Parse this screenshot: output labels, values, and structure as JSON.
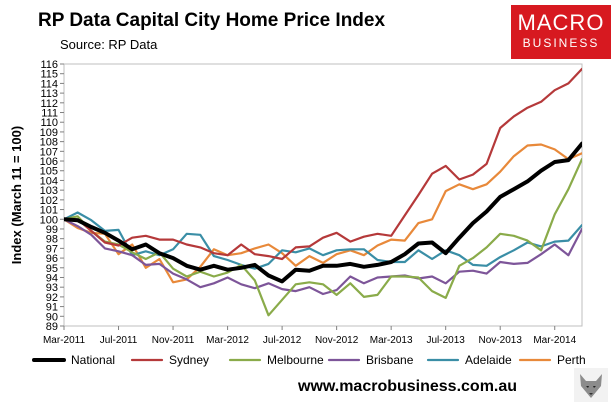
{
  "header": {
    "title": "RP Data Capital City Home Price Index",
    "subtitle": "Source: RP Data"
  },
  "logo": {
    "line1": "MACRO",
    "line2": "BUSINESS"
  },
  "footer": {
    "url": "www.macrobusiness.com.au"
  },
  "chart_data": {
    "type": "line",
    "title": "RP Data Capital City Home Price Index",
    "ylabel": "Index (March 11 = 100)",
    "xlabel": "",
    "ylim": [
      89,
      116
    ],
    "yticks": [
      89,
      90,
      91,
      92,
      93,
      94,
      95,
      96,
      97,
      98,
      99,
      100,
      101,
      102,
      103,
      104,
      105,
      106,
      107,
      108,
      109,
      110,
      111,
      112,
      113,
      114,
      115,
      116
    ],
    "xlim": [
      0,
      38
    ],
    "xticks": [
      {
        "x": 0,
        "label": "Mar-2011"
      },
      {
        "x": 4,
        "label": "Jul-2011"
      },
      {
        "x": 8,
        "label": "Nov-2011"
      },
      {
        "x": 12,
        "label": "Mar-2012"
      },
      {
        "x": 16,
        "label": "Jul-2012"
      },
      {
        "x": 20,
        "label": "Nov-2012"
      },
      {
        "x": 24,
        "label": "Mar-2013"
      },
      {
        "x": 28,
        "label": "Jul-2013"
      },
      {
        "x": 32,
        "label": "Nov-2013"
      },
      {
        "x": 36,
        "label": "Mar-2014"
      }
    ],
    "legend_position": "bottom",
    "series": [
      {
        "name": "National",
        "color": "#000000",
        "width": 4,
        "x": [
          0,
          1,
          2,
          3,
          4,
          5,
          6,
          7,
          8,
          9,
          10,
          11,
          12,
          13,
          14,
          15,
          16,
          17,
          18,
          19,
          20,
          21,
          22,
          23,
          24,
          25,
          26,
          27,
          28,
          29,
          30,
          31,
          32,
          33,
          34,
          35,
          36,
          37,
          38
        ],
        "y": [
          100,
          99.9,
          99.2,
          98.6,
          97.8,
          96.9,
          97.4,
          96.5,
          96,
          95.2,
          94.8,
          95.2,
          94.8,
          95,
          95.3,
          94.2,
          93.6,
          94.8,
          94.7,
          95.2,
          95.2,
          95.4,
          95.1,
          95.3,
          95.6,
          96.4,
          97.5,
          97.6,
          96.5,
          98.1,
          99.6,
          100.8,
          102.3,
          103.1,
          103.9,
          105,
          105.9,
          106.1,
          107.8
        ]
      },
      {
        "name": "Sydney",
        "color": "#b5393a",
        "width": 2.2,
        "x": [
          0,
          1,
          2,
          3,
          4,
          5,
          6,
          7,
          8,
          9,
          10,
          11,
          12,
          13,
          14,
          15,
          16,
          17,
          18,
          19,
          20,
          21,
          22,
          23,
          24,
          25,
          26,
          27,
          28,
          29,
          30,
          31,
          32,
          33,
          34,
          35,
          36,
          37,
          38
        ],
        "y": [
          100,
          100,
          98.8,
          97.6,
          97.3,
          98.1,
          98.3,
          97.9,
          97.9,
          97.4,
          97.1,
          96.5,
          96.3,
          97.4,
          96.4,
          96.2,
          95.9,
          97.1,
          97.2,
          98.1,
          98.6,
          97.7,
          98.2,
          98.5,
          98.3,
          100.4,
          102.5,
          104.7,
          105.5,
          104.1,
          104.6,
          105.7,
          109.4,
          110.6,
          111.5,
          112.1,
          113.3,
          114,
          115.5
        ]
      },
      {
        "name": "Melbourne",
        "color": "#8aab4a",
        "width": 2.2,
        "x": [
          0,
          1,
          2,
          3,
          4,
          5,
          6,
          7,
          8,
          9,
          10,
          11,
          12,
          13,
          14,
          15,
          16,
          17,
          18,
          19,
          20,
          21,
          22,
          23,
          24,
          25,
          26,
          27,
          28,
          29,
          30,
          31,
          32,
          33,
          34,
          35,
          36,
          37,
          38
        ],
        "y": [
          100,
          100.3,
          98.8,
          97.7,
          97.4,
          96.6,
          95.9,
          96.6,
          94.9,
          94.1,
          94.6,
          94.1,
          94.5,
          95.3,
          93.7,
          90.1,
          91.7,
          93.3,
          93.5,
          93.3,
          92.2,
          93.4,
          92,
          92.2,
          94.1,
          94.1,
          94,
          92.6,
          91.9,
          95.2,
          96,
          97.1,
          98.5,
          98.3,
          97.8,
          96.8,
          100.5,
          103.1,
          106.2
        ]
      },
      {
        "name": "Brisbane",
        "color": "#7d5599",
        "width": 2.2,
        "x": [
          0,
          1,
          2,
          3,
          4,
          5,
          6,
          7,
          8,
          9,
          10,
          11,
          12,
          13,
          14,
          15,
          16,
          17,
          18,
          19,
          20,
          21,
          22,
          23,
          24,
          25,
          26,
          27,
          28,
          29,
          30,
          31,
          32,
          33,
          34,
          35,
          36,
          37,
          38
        ],
        "y": [
          100,
          99.3,
          98.4,
          97,
          96.7,
          96.3,
          95.3,
          95.4,
          94.4,
          93.8,
          93,
          93.4,
          94,
          93.3,
          92.9,
          93.4,
          92.8,
          92.6,
          93,
          92.3,
          92.7,
          94.1,
          93.4,
          94,
          94.1,
          94.2,
          93.9,
          94.1,
          93.4,
          94.6,
          94.7,
          94.4,
          95.6,
          95.4,
          95.5,
          96.4,
          97.4,
          96.3,
          99
        ]
      },
      {
        "name": "Adelaide",
        "color": "#3a8ea6",
        "width": 2.2,
        "x": [
          0,
          1,
          2,
          3,
          4,
          5,
          6,
          7,
          8,
          9,
          10,
          11,
          12,
          13,
          14,
          15,
          16,
          17,
          18,
          19,
          20,
          21,
          22,
          23,
          24,
          25,
          26,
          27,
          28,
          29,
          30,
          31,
          32,
          33,
          34,
          35,
          36,
          37,
          38
        ],
        "y": [
          100,
          100.7,
          99.9,
          98.8,
          98.9,
          96.3,
          96.7,
          96.3,
          96.9,
          98.5,
          98.4,
          96.2,
          95.8,
          95.3,
          94.9,
          95.4,
          96.8,
          96.6,
          97,
          96.3,
          96.8,
          96.9,
          96.9,
          95.8,
          95.6,
          95.6,
          96.8,
          95.9,
          96.8,
          96.3,
          95.3,
          95.2,
          96.1,
          96.8,
          97.6,
          97.2,
          97.7,
          97.8,
          99.4
        ]
      },
      {
        "name": "Perth",
        "color": "#e8893a",
        "width": 2.2,
        "x": [
          0,
          1,
          2,
          3,
          4,
          5,
          6,
          7,
          8,
          9,
          10,
          11,
          12,
          13,
          14,
          15,
          16,
          17,
          18,
          19,
          20,
          21,
          22,
          23,
          24,
          25,
          26,
          27,
          28,
          29,
          30,
          31,
          32,
          33,
          34,
          35,
          36,
          37,
          38
        ],
        "y": [
          100,
          99.1,
          98.6,
          98.5,
          96.4,
          97.4,
          95,
          95.9,
          93.5,
          93.8,
          95.1,
          96.9,
          96.3,
          96.5,
          97,
          97.4,
          96.5,
          95.2,
          96.2,
          95.5,
          96.4,
          96.8,
          96.3,
          97.3,
          97.9,
          97.8,
          99.6,
          100,
          102.9,
          103.6,
          103.1,
          103.6,
          104.9,
          106.5,
          107.6,
          107.7,
          107.2,
          106.2,
          106.8
        ]
      }
    ]
  }
}
